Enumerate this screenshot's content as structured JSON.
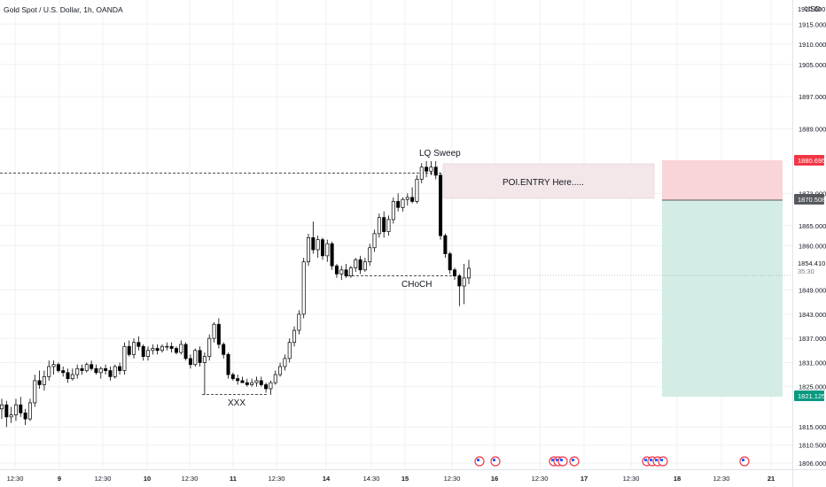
{
  "header": {
    "symbol_title": "Gold Spot / U.S. Dollar, 1h, OANDA",
    "currency": "USD"
  },
  "colors": {
    "candle_body": "#000000",
    "stop_zone": "#f9d4d8",
    "target_zone": "#d3ede6",
    "poi_box": "#f3e7e9",
    "stop_badge": "#f23645",
    "entry_badge": "#55595e",
    "target_badge": "#089981",
    "grid": "#eef0f3",
    "axis_text": "#131722"
  },
  "chart_data": {
    "type": "candlestick",
    "title": "Gold Spot / U.S. Dollar, 1h, OANDA",
    "y_axis": {
      "ticks": [
        "1915.000",
        "1910.000",
        "1905.000",
        "1897.000",
        "1889.000",
        "1873.000",
        "1865.000",
        "1860.000",
        "1849.000",
        "1843.000",
        "1837.000",
        "1831.000",
        "1825.000",
        "1815.000",
        "1810.500",
        "1806.000"
      ],
      "partial_top_label": "1920.000",
      "range": [
        1804.5,
        1921.0
      ]
    },
    "x_axis": {
      "ticks": [
        "12:30",
        "9",
        "12:30",
        "10",
        "12:30",
        "11",
        "12:30",
        "14",
        "14:30",
        "15",
        "12:30",
        "16",
        "12:30",
        "17",
        "12:30",
        "18",
        "12:30",
        "21"
      ]
    },
    "price_badges": {
      "stop": "1880.695",
      "entry": "1870.508",
      "current": "1854.410",
      "countdown": "35:30",
      "target": "1821.125"
    },
    "annotations": {
      "lq_sweep": "LQ Sweep",
      "poi_entry": "POI.ENTRY Here.....",
      "choch": "CHoCH",
      "xxx": "XXX"
    },
    "candles": [
      {
        "o": 1819.5,
        "h": 1822.0,
        "l": 1817.0,
        "c": 1820.5
      },
      {
        "o": 1820.5,
        "h": 1821.5,
        "l": 1815.0,
        "c": 1817.5
      },
      {
        "o": 1817.5,
        "h": 1820.0,
        "l": 1816.0,
        "c": 1818.0
      },
      {
        "o": 1818.0,
        "h": 1822.0,
        "l": 1816.5,
        "c": 1820.5
      },
      {
        "o": 1820.5,
        "h": 1822.5,
        "l": 1817.5,
        "c": 1818.5
      },
      {
        "o": 1818.5,
        "h": 1819.5,
        "l": 1815.5,
        "c": 1817.0
      },
      {
        "o": 1817.0,
        "h": 1822.0,
        "l": 1816.5,
        "c": 1821.0
      },
      {
        "o": 1821.0,
        "h": 1828.0,
        "l": 1820.0,
        "c": 1826.5
      },
      {
        "o": 1826.5,
        "h": 1829.0,
        "l": 1824.5,
        "c": 1825.5
      },
      {
        "o": 1825.5,
        "h": 1829.0,
        "l": 1824.0,
        "c": 1827.5
      },
      {
        "o": 1827.5,
        "h": 1831.5,
        "l": 1826.5,
        "c": 1830.0
      },
      {
        "o": 1830.0,
        "h": 1831.5,
        "l": 1828.0,
        "c": 1830.5
      },
      {
        "o": 1830.5,
        "h": 1831.0,
        "l": 1828.5,
        "c": 1829.0
      },
      {
        "o": 1829.0,
        "h": 1830.0,
        "l": 1827.5,
        "c": 1828.5
      },
      {
        "o": 1828.5,
        "h": 1829.5,
        "l": 1826.0,
        "c": 1827.0
      },
      {
        "o": 1827.0,
        "h": 1829.5,
        "l": 1826.5,
        "c": 1828.0
      },
      {
        "o": 1828.0,
        "h": 1830.5,
        "l": 1827.0,
        "c": 1829.5
      },
      {
        "o": 1829.5,
        "h": 1830.5,
        "l": 1828.0,
        "c": 1829.0
      },
      {
        "o": 1829.0,
        "h": 1831.0,
        "l": 1828.5,
        "c": 1830.5
      },
      {
        "o": 1830.5,
        "h": 1831.5,
        "l": 1829.0,
        "c": 1829.5
      },
      {
        "o": 1829.5,
        "h": 1830.5,
        "l": 1828.0,
        "c": 1828.5
      },
      {
        "o": 1828.5,
        "h": 1830.0,
        "l": 1827.0,
        "c": 1829.5
      },
      {
        "o": 1829.5,
        "h": 1830.5,
        "l": 1828.0,
        "c": 1829.0
      },
      {
        "o": 1829.0,
        "h": 1830.0,
        "l": 1826.5,
        "c": 1827.5
      },
      {
        "o": 1827.5,
        "h": 1830.5,
        "l": 1827.0,
        "c": 1830.0
      },
      {
        "o": 1830.0,
        "h": 1831.0,
        "l": 1828.0,
        "c": 1829.0
      },
      {
        "o": 1829.0,
        "h": 1836.0,
        "l": 1828.0,
        "c": 1835.0
      },
      {
        "o": 1835.0,
        "h": 1836.5,
        "l": 1832.5,
        "c": 1833.0
      },
      {
        "o": 1833.0,
        "h": 1837.0,
        "l": 1832.0,
        "c": 1836.0
      },
      {
        "o": 1836.0,
        "h": 1837.5,
        "l": 1834.0,
        "c": 1835.0
      },
      {
        "o": 1835.0,
        "h": 1835.5,
        "l": 1831.5,
        "c": 1832.5
      },
      {
        "o": 1832.5,
        "h": 1835.0,
        "l": 1831.5,
        "c": 1834.0
      },
      {
        "o": 1834.0,
        "h": 1835.5,
        "l": 1833.0,
        "c": 1834.5
      },
      {
        "o": 1834.5,
        "h": 1835.5,
        "l": 1833.0,
        "c": 1834.0
      },
      {
        "o": 1834.0,
        "h": 1835.5,
        "l": 1833.5,
        "c": 1835.0
      },
      {
        "o": 1835.0,
        "h": 1836.0,
        "l": 1834.0,
        "c": 1835.0
      },
      {
        "o": 1835.0,
        "h": 1836.0,
        "l": 1833.5,
        "c": 1834.5
      },
      {
        "o": 1834.5,
        "h": 1835.0,
        "l": 1833.0,
        "c": 1833.5
      },
      {
        "o": 1833.5,
        "h": 1836.5,
        "l": 1833.0,
        "c": 1835.5
      },
      {
        "o": 1835.5,
        "h": 1836.0,
        "l": 1831.5,
        "c": 1832.0
      },
      {
        "o": 1832.0,
        "h": 1833.0,
        "l": 1829.5,
        "c": 1830.5
      },
      {
        "o": 1830.5,
        "h": 1834.5,
        "l": 1830.0,
        "c": 1834.0
      },
      {
        "o": 1834.0,
        "h": 1835.0,
        "l": 1830.0,
        "c": 1831.0
      },
      {
        "o": 1831.0,
        "h": 1833.5,
        "l": 1823.0,
        "c": 1832.5
      },
      {
        "o": 1832.5,
        "h": 1838.0,
        "l": 1831.5,
        "c": 1837.0
      },
      {
        "o": 1837.0,
        "h": 1841.0,
        "l": 1836.0,
        "c": 1840.5
      },
      {
        "o": 1840.5,
        "h": 1842.0,
        "l": 1834.5,
        "c": 1835.5
      },
      {
        "o": 1835.5,
        "h": 1836.0,
        "l": 1832.0,
        "c": 1833.0
      },
      {
        "o": 1833.0,
        "h": 1833.5,
        "l": 1827.0,
        "c": 1828.0
      },
      {
        "o": 1828.0,
        "h": 1828.5,
        "l": 1826.5,
        "c": 1827.0
      },
      {
        "o": 1827.0,
        "h": 1828.0,
        "l": 1825.5,
        "c": 1826.5
      },
      {
        "o": 1826.5,
        "h": 1827.5,
        "l": 1826.0,
        "c": 1826.0
      },
      {
        "o": 1826.0,
        "h": 1827.0,
        "l": 1825.0,
        "c": 1825.5
      },
      {
        "o": 1825.5,
        "h": 1827.0,
        "l": 1825.0,
        "c": 1826.0
      },
      {
        "o": 1826.0,
        "h": 1827.5,
        "l": 1825.0,
        "c": 1826.5
      },
      {
        "o": 1826.5,
        "h": 1827.5,
        "l": 1825.0,
        "c": 1825.5
      },
      {
        "o": 1825.5,
        "h": 1826.0,
        "l": 1823.5,
        "c": 1824.5
      },
      {
        "o": 1824.5,
        "h": 1826.5,
        "l": 1823.0,
        "c": 1826.0
      },
      {
        "o": 1826.0,
        "h": 1829.0,
        "l": 1825.5,
        "c": 1828.0
      },
      {
        "o": 1828.0,
        "h": 1831.0,
        "l": 1827.5,
        "c": 1830.0
      },
      {
        "o": 1830.0,
        "h": 1833.0,
        "l": 1829.0,
        "c": 1832.0
      },
      {
        "o": 1832.0,
        "h": 1837.0,
        "l": 1831.0,
        "c": 1836.0
      },
      {
        "o": 1836.0,
        "h": 1840.0,
        "l": 1835.0,
        "c": 1839.0
      },
      {
        "o": 1839.0,
        "h": 1844.0,
        "l": 1838.0,
        "c": 1843.0
      },
      {
        "o": 1843.0,
        "h": 1857.0,
        "l": 1842.0,
        "c": 1856.0
      },
      {
        "o": 1856.0,
        "h": 1863.0,
        "l": 1855.0,
        "c": 1862.0
      },
      {
        "o": 1862.0,
        "h": 1866.0,
        "l": 1858.0,
        "c": 1859.0
      },
      {
        "o": 1859.0,
        "h": 1862.5,
        "l": 1857.0,
        "c": 1861.5
      },
      {
        "o": 1861.5,
        "h": 1862.0,
        "l": 1856.5,
        "c": 1857.5
      },
      {
        "o": 1857.5,
        "h": 1861.5,
        "l": 1856.0,
        "c": 1860.5
      },
      {
        "o": 1860.5,
        "h": 1861.0,
        "l": 1854.0,
        "c": 1855.0
      },
      {
        "o": 1855.0,
        "h": 1855.5,
        "l": 1852.0,
        "c": 1853.0
      },
      {
        "o": 1853.0,
        "h": 1855.0,
        "l": 1851.5,
        "c": 1854.0
      },
      {
        "o": 1854.0,
        "h": 1855.5,
        "l": 1852.0,
        "c": 1852.5
      },
      {
        "o": 1852.5,
        "h": 1855.0,
        "l": 1852.0,
        "c": 1854.5
      },
      {
        "o": 1854.5,
        "h": 1857.0,
        "l": 1853.5,
        "c": 1856.5
      },
      {
        "o": 1856.5,
        "h": 1857.5,
        "l": 1853.0,
        "c": 1854.0
      },
      {
        "o": 1854.0,
        "h": 1857.0,
        "l": 1853.5,
        "c": 1856.0
      },
      {
        "o": 1856.0,
        "h": 1860.5,
        "l": 1855.0,
        "c": 1859.5
      },
      {
        "o": 1859.5,
        "h": 1864.0,
        "l": 1858.5,
        "c": 1863.0
      },
      {
        "o": 1863.0,
        "h": 1868.0,
        "l": 1862.0,
        "c": 1867.0
      },
      {
        "o": 1867.0,
        "h": 1868.5,
        "l": 1862.0,
        "c": 1863.5
      },
      {
        "o": 1863.5,
        "h": 1867.5,
        "l": 1862.5,
        "c": 1866.5
      },
      {
        "o": 1866.5,
        "h": 1872.0,
        "l": 1865.5,
        "c": 1871.0
      },
      {
        "o": 1871.0,
        "h": 1873.0,
        "l": 1868.5,
        "c": 1869.5
      },
      {
        "o": 1869.5,
        "h": 1872.0,
        "l": 1868.5,
        "c": 1871.5
      },
      {
        "o": 1871.5,
        "h": 1873.0,
        "l": 1870.0,
        "c": 1872.0
      },
      {
        "o": 1872.0,
        "h": 1874.5,
        "l": 1870.5,
        "c": 1871.0
      },
      {
        "o": 1871.0,
        "h": 1877.5,
        "l": 1870.5,
        "c": 1876.5
      },
      {
        "o": 1876.5,
        "h": 1880.5,
        "l": 1875.5,
        "c": 1879.5
      },
      {
        "o": 1879.5,
        "h": 1881.0,
        "l": 1877.0,
        "c": 1878.5
      },
      {
        "o": 1878.5,
        "h": 1881.0,
        "l": 1877.5,
        "c": 1879.5
      },
      {
        "o": 1879.5,
        "h": 1881.0,
        "l": 1876.5,
        "c": 1877.5
      },
      {
        "o": 1877.5,
        "h": 1878.0,
        "l": 1861.5,
        "c": 1862.5
      },
      {
        "o": 1862.5,
        "h": 1863.0,
        "l": 1857.0,
        "c": 1858.0
      },
      {
        "o": 1858.0,
        "h": 1858.5,
        "l": 1853.0,
        "c": 1854.0
      },
      {
        "o": 1854.0,
        "h": 1854.5,
        "l": 1851.5,
        "c": 1852.5
      },
      {
        "o": 1852.5,
        "h": 1853.0,
        "l": 1845.0,
        "c": 1850.0
      },
      {
        "o": 1850.0,
        "h": 1855.5,
        "l": 1845.5,
        "c": 1852.0
      },
      {
        "o": 1852.0,
        "h": 1856.5,
        "l": 1850.5,
        "c": 1854.4
      }
    ],
    "series_window": {
      "first_candle_x": 2,
      "spacing": 5.3,
      "last_candle_x": 529
    }
  }
}
